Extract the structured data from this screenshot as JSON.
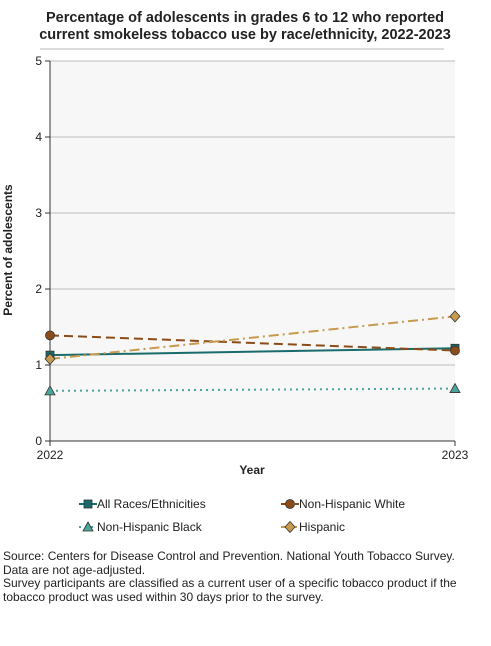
{
  "chart_data": {
    "type": "line",
    "title_lines": [
      "Percentage of adolescents in grades 6 to 12 who reported",
      "current smokeless tobacco use by race/ethnicity, 2022-2023"
    ],
    "xlabel": "Year",
    "ylabel": "Percent of adolescents",
    "x": [
      "2022",
      "2023"
    ],
    "ylim": [
      0,
      5
    ],
    "yticks": [
      "0",
      "1",
      "2",
      "3",
      "4",
      "5"
    ],
    "grid": true,
    "legend_position": "bottom",
    "series": [
      {
        "name": "All Races/Ethnicities",
        "values": [
          1.13,
          1.22
        ],
        "color": "#1a6b6b",
        "dash": "solid",
        "marker": "square"
      },
      {
        "name": "Non-Hispanic White",
        "values": [
          1.39,
          1.19
        ],
        "color": "#8b4c1a",
        "dash": "dashed",
        "marker": "circle"
      },
      {
        "name": "Non-Hispanic Black",
        "values": [
          0.66,
          0.69
        ],
        "color": "#4aa59a",
        "dash": "dotted",
        "marker": "triangle"
      },
      {
        "name": "Hispanic",
        "values": [
          1.08,
          1.64
        ],
        "color": "#c89a4e",
        "dash": "dashdot",
        "marker": "diamond"
      }
    ]
  },
  "source_notes": [
    "Source: Centers for Disease Control and Prevention. National Youth Tobacco Survey.",
    "Data are not age-adjusted.",
    "Survey participants are classified as a current user of a specific tobacco product if the tobacco product was used within 30 days prior to the survey."
  ]
}
